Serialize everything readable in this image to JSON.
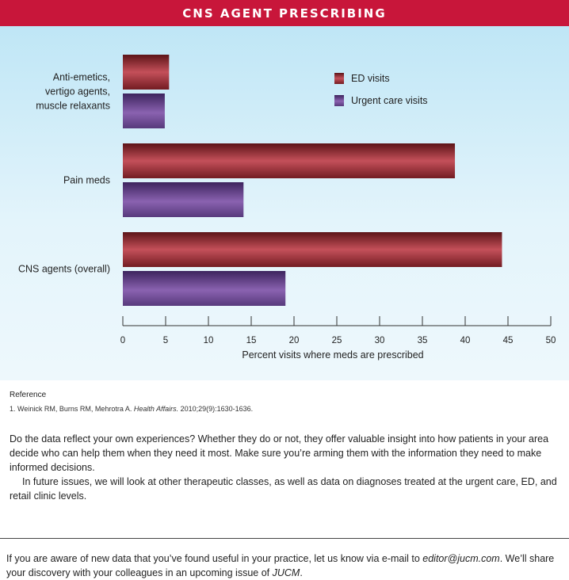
{
  "header": {
    "title": "CNS AGENT PRESCRIBING"
  },
  "chart_data": {
    "type": "bar",
    "orientation": "horizontal",
    "categories": [
      [
        "Anti-emetics,",
        "vertigo agents,",
        "muscle relaxants"
      ],
      [
        "Pain meds"
      ],
      [
        "CNS agents (overall)"
      ]
    ],
    "series": [
      {
        "name": "ED visits",
        "values": [
          5.4,
          38.8,
          44.3
        ],
        "color": "#9a2a2f"
      },
      {
        "name": "Urgent care visits",
        "values": [
          4.9,
          14.1,
          19.0
        ],
        "color": "#6e4a8e"
      }
    ],
    "xlabel": "Percent visits where meds are prescribed",
    "xlim": [
      0,
      50
    ],
    "xticks": [
      0,
      5,
      10,
      15,
      20,
      25,
      30,
      35,
      40,
      45,
      50
    ],
    "legend_position": "top-right",
    "grid": false
  },
  "reference": {
    "title": "Reference",
    "text_before": "1. Weinick RM, Burns RM, Mehrotra A. ",
    "journal": "Health Affairs.",
    "text_after": " 2010;29(9):1630-1636."
  },
  "body": {
    "paragraph1": "Do the data reflect your own experiences? Whether they do or not, they offer valuable insight into how patients in your area decide who can help them when they need it most. Make sure you’re arming them with the information they need to make informed decisions.",
    "paragraph2": "In future issues, we will look at other therapeutic classes, as well as data on diagnoses treated at the urgent care, ED, and retail clinic levels."
  },
  "footer": {
    "text_1": "If you are aware of new data that you’ve found useful in your practice, let us know via e-mail to ",
    "email": "editor@jucm.com",
    "text_2": ". We’ll share your discovery with your colleagues in an upcoming issue of ",
    "journal": "JUCM",
    "text_3": "."
  }
}
